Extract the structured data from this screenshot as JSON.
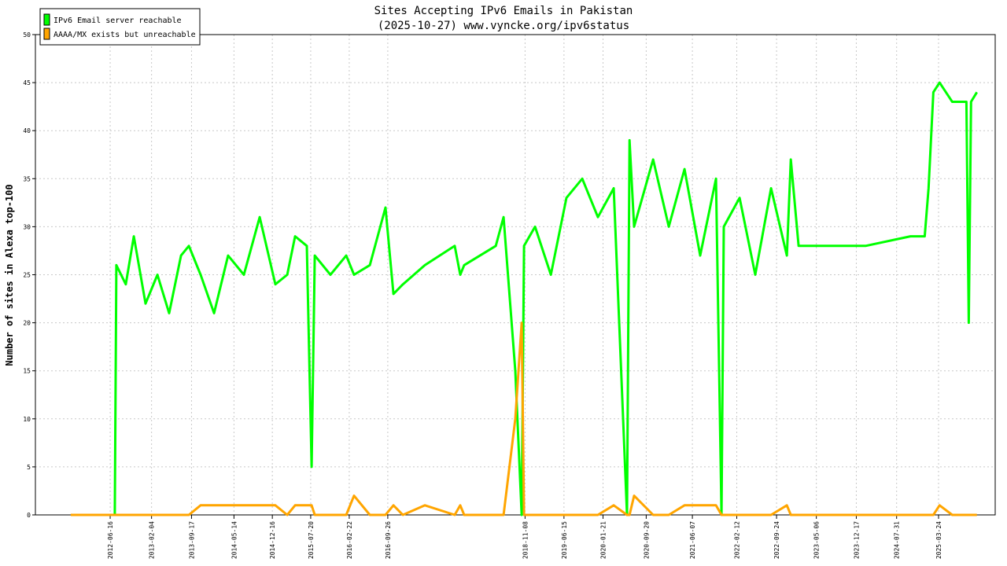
{
  "chart_data": {
    "type": "line",
    "title": "Sites Accepting IPv6 Emails in Pakistan",
    "subtitle": "(2025-10-27) www.vyncke.org/ipv6status",
    "y_label": "Number of sites in Alexa top-100",
    "legend": "upper left",
    "grid": true,
    "x": [
      "2011-11-07",
      "2012-07-12",
      "2012-07-21",
      "2012-09-12",
      "2012-10-27",
      "2013-01-01",
      "2013-03-09",
      "2013-05-14",
      "2013-07-20",
      "2013-09-02",
      "2013-11-07",
      "2014-01-22",
      "2014-04-11",
      "2014-07-09",
      "2014-10-06",
      "2015-01-02",
      "2015-03-10",
      "2015-04-23",
      "2015-06-28",
      "2015-07-25",
      "2015-08-12",
      "2015-11-08",
      "2016-02-05",
      "2016-03-20",
      "2016-06-17",
      "2016-09-13",
      "2016-10-28",
      "2016-12-20",
      "2017-04-23",
      "2017-10-08",
      "2017-11-08",
      "2017-11-30",
      "2018-05-27",
      "2018-07-10",
      "2018-09-14",
      "2018-10-20",
      "2018-11-02",
      "2019-01-03",
      "2019-04-02",
      "2019-06-29",
      "2019-09-26",
      "2019-12-23",
      "2020-03-21",
      "2020-06-04",
      "2020-06-18",
      "2020-07-14",
      "2020-10-29",
      "2021-01-25",
      "2021-04-24",
      "2021-07-21",
      "2021-10-18",
      "2021-11-18",
      "2021-12-01",
      "2022-02-28",
      "2022-05-27",
      "2022-08-24",
      "2022-11-21",
      "2022-12-13",
      "2023-01-26",
      "2023-05-17",
      "2024-02-07",
      "2024-10-17",
      "2025-01-05",
      "2025-01-27",
      "2025-02-23",
      "2025-03-30",
      "2025-06-09",
      "2025-08-28",
      "2025-09-10",
      "2025-09-23",
      "2025-10-26"
    ],
    "series": [
      {
        "name": "IPv6 Email server reachable",
        "color": "#00ff00",
        "values": [
          null,
          0,
          26,
          24,
          29,
          22,
          25,
          21,
          27,
          28,
          25,
          21,
          27,
          25,
          31,
          24,
          25,
          29,
          28,
          5,
          27,
          25,
          27,
          25,
          26,
          32,
          23,
          24,
          26,
          28,
          25,
          26,
          28,
          31,
          15,
          0,
          28,
          30,
          25,
          33,
          35,
          31,
          34,
          0,
          39,
          30,
          37,
          30,
          36,
          27,
          35,
          0,
          30,
          33,
          25,
          34,
          27,
          37,
          28,
          28,
          28,
          29,
          29,
          34,
          44,
          45,
          43,
          43,
          20,
          43,
          44
        ]
      },
      {
        "name": "AAAA/MX exists but unreachable",
        "color": "#ffa500",
        "values": [
          0,
          0,
          0,
          0,
          0,
          0,
          0,
          0,
          0,
          0,
          1,
          1,
          1,
          1,
          1,
          1,
          0,
          1,
          1,
          1,
          0,
          0,
          0,
          2,
          0,
          0,
          1,
          0,
          1,
          0,
          1,
          0,
          0,
          0,
          10,
          20,
          0,
          0,
          0,
          0,
          0,
          0,
          1,
          0,
          0,
          2,
          0,
          0,
          1,
          1,
          1,
          0,
          0,
          0,
          0,
          0,
          1,
          0,
          0,
          0,
          0,
          0,
          0,
          0,
          0,
          1,
          0,
          0,
          0,
          0,
          0
        ]
      }
    ],
    "xlim": [
      "2011-04-22",
      "2026-02-06"
    ],
    "xticks": [
      "2012-06-16",
      "2013-02-04",
      "2013-09-17",
      "2014-05-14",
      "2014-12-16",
      "2015-07-20",
      "2016-02-22",
      "2016-09-26",
      "2018-11-08",
      "2019-06-15",
      "2020-01-21",
      "2020-09-20",
      "2021-06-07",
      "2022-02-12",
      "2022-09-24",
      "2023-05-06",
      "2023-12-17",
      "2024-07-31",
      "2025-03-24"
    ],
    "ylim": [
      0,
      50
    ],
    "yticks": [
      0,
      5,
      10,
      15,
      20,
      25,
      30,
      35,
      40,
      45,
      50
    ]
  }
}
